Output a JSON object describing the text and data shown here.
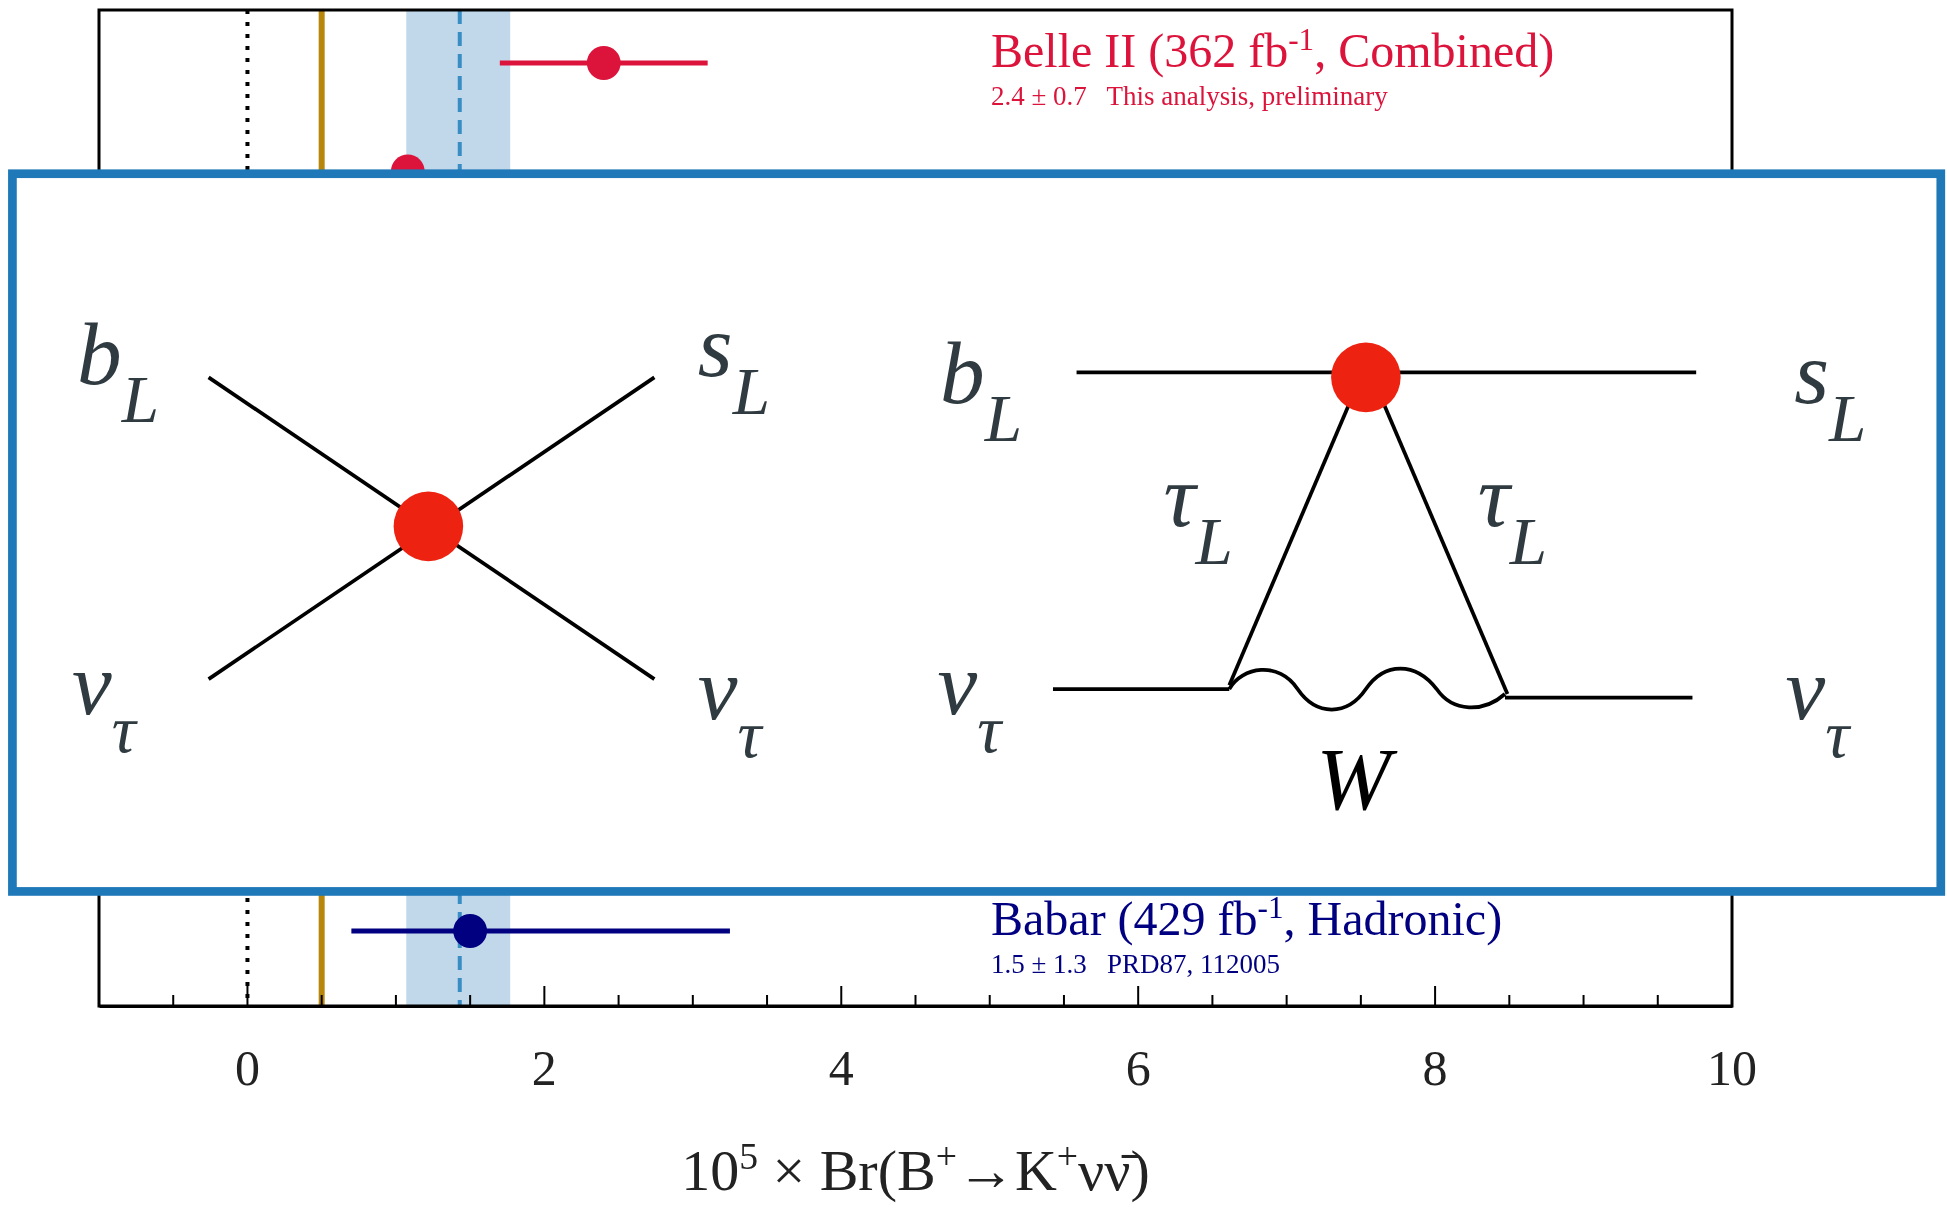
{
  "chart_data": {
    "type": "scatter",
    "orientation": "horizontal",
    "xlabel": "10$^{5}$ × Br(B$^{+}$→K$^{+}$νν̄)",
    "categories": [
      null,
      null,
      null,
      null,
      null,
      null,
      null,
      null,
      null
    ],
    "xlim": [
      -1,
      10
    ],
    "xticks": [
      {
        "value": -0.5,
        "label": null
      },
      0,
      {
        "value": 0.5,
        "label": null
      },
      {
        "value": 1,
        "label": null
      },
      {
        "value": 1.5,
        "label": null
      },
      2,
      {
        "value": 2.5,
        "label": null
      },
      {
        "value": 3,
        "label": null
      },
      {
        "value": 3.5,
        "label": null
      },
      4,
      {
        "value": 4.5,
        "label": null
      },
      {
        "value": 5,
        "label": null
      },
      {
        "value": 5.5,
        "label": null
      },
      6,
      {
        "value": 6.5,
        "label": null
      },
      {
        "value": 7,
        "label": null
      },
      {
        "value": 7.5,
        "label": null
      },
      8,
      {
        "value": 8.5,
        "label": null
      },
      {
        "value": 9,
        "label": null
      },
      {
        "value": 9.5,
        "label": null
      },
      10
    ],
    "marker": "circle",
    "legend": false,
    "grid": false,
    "series": [
      {
        "name": "Belle II (362 fb$^{-1}$, Combined)",
        "color": "#dc143c",
        "values": [
          2.4,
          null,
          null,
          null,
          null,
          null,
          null,
          null,
          null
        ],
        "errors": [
          0.7,
          null,
          null,
          null,
          null,
          null,
          null,
          null,
          null
        ]
      },
      {
        "color": "#dc143c",
        "values": [
          null,
          1.08,
          null,
          null,
          null,
          null,
          null,
          null,
          null
        ]
      },
      {
        "name": "Babar (429 fb$^{-1}$, Hadronic)",
        "color": "#000080",
        "values": [
          null,
          null,
          null,
          null,
          null,
          null,
          null,
          null,
          1.5
        ],
        "errors": [
          null,
          null,
          null,
          null,
          null,
          null,
          null,
          null,
          [
            0.7,
            3.25
          ]
        ]
      }
    ],
    "ref_lines": [
      {
        "axis": "x",
        "value": 0,
        "color": "#000000",
        "line_style": "dotted"
      },
      {
        "axis": "x",
        "value": 0.5,
        "color": "#b8860b",
        "line_style": "solid"
      },
      {
        "axis": "x",
        "value": 1.43,
        "color": "#3a8cc4",
        "line_style": "dashed"
      }
    ],
    "bands": [
      {
        "axis": "x",
        "from": 1.07,
        "to": 1.77,
        "color": "#c0d8ea"
      }
    ],
    "annotations": [
      "2.4 ± 0.7   This analysis, preliminary",
      "1.5 ± 1.3   PRD87, 112005",
      "b$_{L}$",
      "s$_{L}$",
      "ν$_{τ}$",
      "ν$_{τ}$",
      "b$_{L}$",
      "s$_{L}$",
      "τ$_{L}$",
      "τ$_{L}$",
      "ν$_{τ}$",
      "ν$_{τ}$",
      "W"
    ]
  }
}
